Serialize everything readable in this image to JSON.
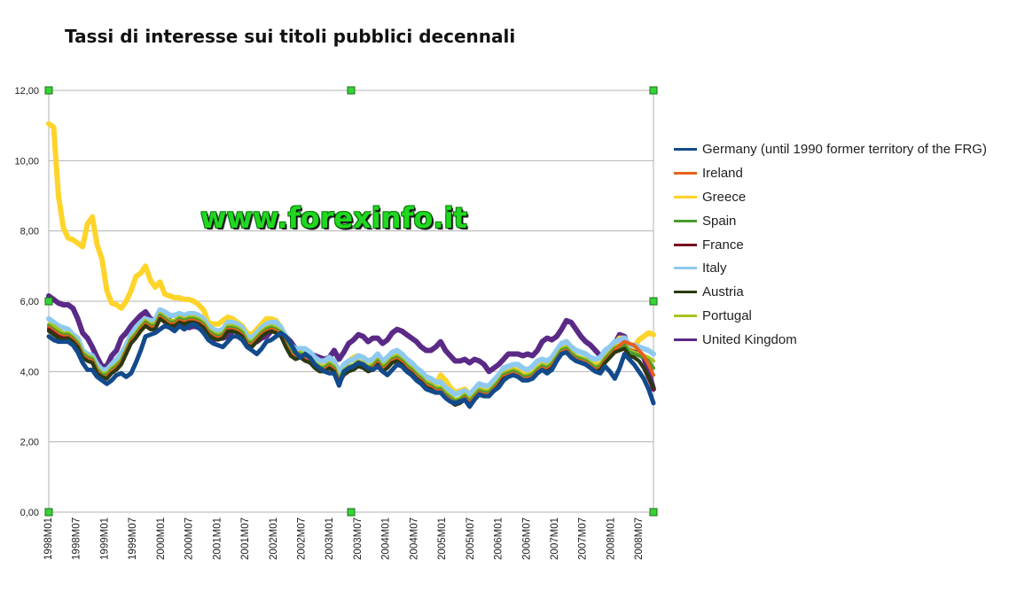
{
  "chart_data": {
    "type": "line",
    "title": "Tassi di interesse sui titoli pubblici decennali",
    "xlabel": "",
    "ylabel": "",
    "ylim": [
      0,
      12
    ],
    "y_ticks": [
      "0,00",
      "2,00",
      "4,00",
      "6,00",
      "8,00",
      "10,00",
      "12,00"
    ],
    "x_tick_labels": [
      "1998M01",
      "1998M07",
      "1999M01",
      "1999M07",
      "2000M01",
      "2000M07",
      "2001M01",
      "2001M07",
      "2002M01",
      "2002M07",
      "2003M01",
      "2003M07",
      "2004M01",
      "2004M07",
      "2005M01",
      "2005M07",
      "2006M01",
      "2006M07",
      "2007M01",
      "2007M07",
      "2008M01",
      "2008M07"
    ],
    "x_start": "1998M01",
    "x_end": "2008M12",
    "grid": "horizontal",
    "legend_position": "right",
    "annotation": "www.forexinfo.it",
    "series": [
      {
        "name": "United Kingdom",
        "color": "#5b2a86",
        "values": [
          6.15,
          6.05,
          5.95,
          5.9,
          5.9,
          5.8,
          5.5,
          5.1,
          4.95,
          4.7,
          4.4,
          4.15,
          4.15,
          4.45,
          4.6,
          4.95,
          5.1,
          5.3,
          5.45,
          5.6,
          5.7,
          5.5,
          5.45,
          5.75,
          5.6,
          5.45,
          5.3,
          5.35,
          5.3,
          5.25,
          5.3,
          5.25,
          5.2,
          5.05,
          4.9,
          4.95,
          4.95,
          5.0,
          5.15,
          5.25,
          5.2,
          5.0,
          4.9,
          4.85,
          4.95,
          5.0,
          5.15,
          5.2,
          5.15,
          5.0,
          4.85,
          4.65,
          4.6,
          4.55,
          4.5,
          4.45,
          4.4,
          4.35,
          4.4,
          4.6,
          4.35,
          4.55,
          4.8,
          4.9,
          5.05,
          5.0,
          4.85,
          4.95,
          4.95,
          4.8,
          4.9,
          5.1,
          5.2,
          5.15,
          5.05,
          4.95,
          4.85,
          4.7,
          4.6,
          4.6,
          4.7,
          4.85,
          4.6,
          4.45,
          4.3,
          4.3,
          4.35,
          4.25,
          4.35,
          4.3,
          4.2,
          4.0,
          4.1,
          4.2,
          4.35,
          4.5,
          4.5,
          4.5,
          4.45,
          4.5,
          4.45,
          4.6,
          4.85,
          4.95,
          4.9,
          5.0,
          5.2,
          5.45,
          5.4,
          5.2,
          5.0,
          4.85,
          4.75,
          4.6,
          4.45,
          4.55,
          4.5,
          4.8,
          5.05,
          5.0,
          4.6,
          4.55,
          4.5,
          4.4,
          4.0,
          3.5
        ]
      },
      {
        "name": "Greece",
        "color": "#ffd42a",
        "values": [
          11.05,
          10.95,
          9.0,
          8.1,
          7.8,
          7.75,
          7.65,
          7.55,
          8.2,
          8.4,
          7.6,
          7.2,
          6.3,
          5.95,
          5.9,
          5.8,
          6.0,
          6.3,
          6.7,
          6.8,
          7.0,
          6.6,
          6.4,
          6.55,
          6.2,
          6.15,
          6.1,
          6.1,
          6.05,
          6.05,
          6.0,
          5.9,
          5.75,
          5.4,
          5.35,
          5.35,
          5.45,
          5.55,
          5.5,
          5.4,
          5.3,
          5.1,
          5.05,
          5.2,
          5.35,
          5.5,
          5.5,
          5.45,
          5.25,
          4.95,
          4.65,
          4.55,
          4.55,
          4.45,
          4.4,
          4.3,
          4.25,
          4.3,
          4.3,
          4.3,
          4.0,
          4.15,
          4.3,
          4.4,
          4.45,
          4.4,
          4.25,
          4.3,
          4.4,
          4.25,
          4.3,
          4.45,
          4.5,
          4.4,
          4.25,
          4.1,
          3.95,
          3.85,
          3.75,
          3.65,
          3.6,
          3.9,
          3.75,
          3.55,
          3.4,
          3.45,
          3.5,
          3.35,
          3.45,
          3.6,
          3.55,
          3.55,
          3.7,
          3.85,
          4.05,
          4.1,
          4.15,
          4.1,
          4.05,
          4.0,
          4.1,
          4.25,
          4.3,
          4.25,
          4.35,
          4.55,
          4.75,
          4.85,
          4.7,
          4.6,
          4.55,
          4.5,
          4.35,
          4.25,
          4.2,
          4.4,
          4.6,
          4.8,
          4.95,
          4.95,
          4.75,
          4.7,
          4.9,
          5.0,
          5.1,
          5.05
        ]
      },
      {
        "name": "Italy",
        "color": "#8ecaf0",
        "values": [
          5.5,
          5.4,
          5.3,
          5.25,
          5.2,
          5.05,
          4.95,
          4.6,
          4.5,
          4.45,
          4.2,
          4.05,
          4.05,
          4.2,
          4.35,
          4.5,
          4.75,
          5.05,
          5.25,
          5.4,
          5.5,
          5.45,
          5.45,
          5.75,
          5.7,
          5.6,
          5.6,
          5.65,
          5.6,
          5.65,
          5.65,
          5.6,
          5.5,
          5.3,
          5.2,
          5.15,
          5.2,
          5.4,
          5.4,
          5.35,
          5.25,
          5.0,
          4.95,
          5.1,
          5.25,
          5.35,
          5.4,
          5.4,
          5.25,
          5.0,
          4.75,
          4.65,
          4.65,
          4.65,
          4.55,
          4.4,
          4.3,
          4.3,
          4.4,
          4.3,
          3.95,
          4.2,
          4.3,
          4.35,
          4.45,
          4.4,
          4.3,
          4.35,
          4.5,
          4.3,
          4.4,
          4.55,
          4.6,
          4.5,
          4.35,
          4.25,
          4.1,
          4.0,
          3.85,
          3.8,
          3.7,
          3.7,
          3.55,
          3.45,
          3.35,
          3.4,
          3.45,
          3.35,
          3.5,
          3.65,
          3.6,
          3.6,
          3.75,
          3.9,
          4.1,
          4.15,
          4.2,
          4.2,
          4.1,
          4.05,
          4.15,
          4.3,
          4.35,
          4.3,
          4.4,
          4.6,
          4.8,
          4.85,
          4.7,
          4.6,
          4.55,
          4.5,
          4.4,
          4.35,
          4.4,
          4.6,
          4.7,
          4.85,
          4.9,
          4.95,
          4.75,
          4.75,
          4.7,
          4.65,
          4.6,
          4.5
        ]
      },
      {
        "name": "Portugal",
        "color": "#a9c41e",
        "values": [
          5.35,
          5.3,
          5.2,
          5.1,
          5.1,
          5.0,
          4.85,
          4.55,
          4.45,
          4.4,
          4.1,
          3.95,
          3.95,
          4.1,
          4.2,
          4.35,
          4.65,
          4.95,
          5.1,
          5.3,
          5.45,
          5.35,
          5.35,
          5.65,
          5.55,
          5.45,
          5.45,
          5.55,
          5.5,
          5.55,
          5.55,
          5.5,
          5.4,
          5.2,
          5.1,
          5.05,
          5.1,
          5.3,
          5.3,
          5.25,
          5.15,
          4.9,
          4.85,
          5.0,
          5.15,
          5.25,
          5.3,
          5.25,
          5.15,
          4.85,
          4.6,
          4.5,
          4.55,
          4.45,
          4.4,
          4.25,
          4.15,
          4.15,
          4.25,
          4.15,
          3.8,
          4.05,
          4.15,
          4.2,
          4.3,
          4.25,
          4.15,
          4.2,
          4.35,
          4.15,
          4.25,
          4.4,
          4.45,
          4.35,
          4.2,
          4.1,
          3.95,
          3.85,
          3.7,
          3.65,
          3.55,
          3.55,
          3.4,
          3.3,
          3.2,
          3.25,
          3.35,
          3.2,
          3.35,
          3.5,
          3.45,
          3.45,
          3.6,
          3.75,
          3.95,
          4.0,
          4.05,
          4.0,
          3.9,
          3.9,
          3.95,
          4.1,
          4.2,
          4.15,
          4.25,
          4.45,
          4.65,
          4.7,
          4.55,
          4.45,
          4.4,
          4.35,
          4.25,
          4.15,
          4.2,
          4.4,
          4.55,
          4.7,
          4.75,
          4.8,
          4.6,
          4.55,
          4.5,
          4.45,
          4.4,
          4.3
        ]
      },
      {
        "name": "Spain",
        "color": "#4a9a2c",
        "values": [
          5.3,
          5.2,
          5.1,
          5.05,
          5.05,
          4.95,
          4.8,
          4.5,
          4.4,
          4.35,
          4.05,
          3.9,
          3.9,
          4.05,
          4.15,
          4.3,
          4.6,
          4.9,
          5.05,
          5.25,
          5.4,
          5.3,
          5.3,
          5.6,
          5.5,
          5.4,
          5.4,
          5.5,
          5.45,
          5.5,
          5.5,
          5.45,
          5.35,
          5.15,
          5.05,
          5.0,
          5.05,
          5.25,
          5.25,
          5.2,
          5.1,
          4.85,
          4.8,
          4.95,
          5.1,
          5.2,
          5.25,
          5.2,
          5.1,
          4.8,
          4.55,
          4.45,
          4.5,
          4.4,
          4.35,
          4.2,
          4.1,
          4.1,
          4.2,
          4.1,
          3.75,
          4.0,
          4.1,
          4.15,
          4.25,
          4.2,
          4.1,
          4.15,
          4.3,
          4.1,
          4.2,
          4.35,
          4.4,
          4.3,
          4.15,
          4.05,
          3.9,
          3.8,
          3.65,
          3.6,
          3.5,
          3.5,
          3.35,
          3.25,
          3.15,
          3.2,
          3.3,
          3.15,
          3.3,
          3.45,
          3.4,
          3.4,
          3.55,
          3.7,
          3.9,
          3.95,
          4.0,
          3.95,
          3.85,
          3.85,
          3.9,
          4.05,
          4.15,
          4.1,
          4.2,
          4.4,
          4.6,
          4.65,
          4.5,
          4.4,
          4.35,
          4.3,
          4.2,
          4.1,
          4.15,
          4.35,
          4.5,
          4.65,
          4.7,
          4.75,
          4.55,
          4.5,
          4.45,
          4.4,
          4.3,
          4.1
        ]
      },
      {
        "name": "Ireland",
        "color": "#e8601c",
        "values": [
          5.25,
          5.15,
          5.05,
          5.0,
          5.0,
          4.9,
          4.75,
          4.45,
          4.35,
          4.3,
          4.0,
          3.85,
          3.85,
          4.0,
          4.1,
          4.25,
          4.55,
          4.85,
          5.0,
          5.2,
          5.35,
          5.25,
          5.25,
          5.55,
          5.45,
          5.35,
          5.35,
          5.45,
          5.4,
          5.45,
          5.45,
          5.4,
          5.3,
          5.1,
          5.0,
          4.95,
          5.0,
          5.2,
          5.2,
          5.15,
          5.05,
          4.8,
          4.75,
          4.9,
          5.05,
          5.15,
          5.2,
          5.15,
          5.05,
          4.75,
          4.5,
          4.4,
          4.45,
          4.35,
          4.3,
          4.15,
          4.05,
          4.05,
          4.15,
          4.05,
          3.7,
          3.95,
          4.05,
          4.1,
          4.2,
          4.15,
          4.05,
          4.1,
          4.25,
          4.05,
          4.15,
          4.3,
          4.35,
          4.25,
          4.1,
          4.0,
          3.85,
          3.75,
          3.6,
          3.55,
          3.45,
          3.45,
          3.3,
          3.2,
          3.1,
          3.15,
          3.25,
          3.1,
          3.25,
          3.4,
          3.35,
          3.35,
          3.5,
          3.65,
          3.85,
          3.9,
          3.95,
          3.9,
          3.8,
          3.8,
          3.85,
          4.0,
          4.1,
          4.05,
          4.15,
          4.35,
          4.55,
          4.6,
          4.45,
          4.35,
          4.3,
          4.25,
          4.15,
          4.05,
          4.1,
          4.3,
          4.45,
          4.6,
          4.75,
          4.85,
          4.8,
          4.75,
          4.6,
          4.45,
          4.2,
          3.9
        ]
      },
      {
        "name": "France",
        "color": "#7a1020",
        "values": [
          5.2,
          5.1,
          5.0,
          4.95,
          4.95,
          4.85,
          4.7,
          4.4,
          4.3,
          4.25,
          3.95,
          3.8,
          3.8,
          3.95,
          4.05,
          4.2,
          4.5,
          4.8,
          4.95,
          5.15,
          5.3,
          5.2,
          5.2,
          5.5,
          5.4,
          5.3,
          5.3,
          5.4,
          5.35,
          5.4,
          5.4,
          5.35,
          5.25,
          5.05,
          4.95,
          4.9,
          4.95,
          5.15,
          5.15,
          5.1,
          5.0,
          4.75,
          4.7,
          4.85,
          5.0,
          5.1,
          5.15,
          5.1,
          5.0,
          4.7,
          4.45,
          4.35,
          4.4,
          4.3,
          4.25,
          4.1,
          4.0,
          4.0,
          4.1,
          4.0,
          3.65,
          3.9,
          4.0,
          4.05,
          4.15,
          4.1,
          4.0,
          4.05,
          4.2,
          4.0,
          4.1,
          4.25,
          4.3,
          4.2,
          4.05,
          3.95,
          3.8,
          3.7,
          3.55,
          3.5,
          3.4,
          3.4,
          3.25,
          3.15,
          3.05,
          3.1,
          3.2,
          3.05,
          3.2,
          3.35,
          3.3,
          3.3,
          3.45,
          3.6,
          3.8,
          3.85,
          3.9,
          3.85,
          3.75,
          3.75,
          3.8,
          3.95,
          4.05,
          4.0,
          4.1,
          4.3,
          4.5,
          4.55,
          4.4,
          4.3,
          4.25,
          4.2,
          4.1,
          4.0,
          4.05,
          4.25,
          4.4,
          4.55,
          4.6,
          4.65,
          4.45,
          4.4,
          4.3,
          4.1,
          3.8,
          3.5
        ]
      },
      {
        "name": "Austria",
        "color": "#2a3a10",
        "values": [
          5.15,
          5.05,
          4.95,
          4.9,
          4.95,
          4.85,
          4.7,
          4.4,
          4.3,
          4.25,
          3.95,
          3.85,
          3.8,
          3.95,
          4.05,
          4.2,
          4.5,
          4.8,
          4.95,
          5.15,
          5.3,
          5.2,
          5.2,
          5.5,
          5.4,
          5.3,
          5.3,
          5.4,
          5.35,
          5.4,
          5.4,
          5.35,
          5.25,
          5.05,
          4.95,
          4.9,
          4.95,
          5.15,
          5.15,
          5.1,
          5.0,
          4.75,
          4.7,
          4.85,
          5.0,
          5.1,
          5.15,
          5.1,
          5.0,
          4.7,
          4.45,
          4.35,
          4.4,
          4.3,
          4.25,
          4.1,
          4.0,
          4.0,
          4.1,
          4.0,
          3.65,
          3.9,
          4.0,
          4.05,
          4.15,
          4.1,
          4.0,
          4.05,
          4.2,
          4.0,
          4.1,
          4.25,
          4.3,
          4.2,
          4.05,
          3.95,
          3.8,
          3.7,
          3.55,
          3.5,
          3.4,
          3.4,
          3.25,
          3.15,
          3.05,
          3.1,
          3.2,
          3.05,
          3.2,
          3.35,
          3.3,
          3.3,
          3.45,
          3.6,
          3.8,
          3.85,
          3.9,
          3.85,
          3.75,
          3.75,
          3.8,
          3.95,
          4.05,
          4.0,
          4.1,
          4.3,
          4.5,
          4.55,
          4.4,
          4.3,
          4.25,
          4.2,
          4.1,
          4.0,
          4.05,
          4.25,
          4.4,
          4.55,
          4.6,
          4.65,
          4.45,
          4.4,
          4.3,
          4.1,
          3.85,
          3.55
        ]
      },
      {
        "name": "Germany (until 1990 former territory of the FRG)",
        "color": "#124a8c",
        "values": [
          5.0,
          4.9,
          4.85,
          4.85,
          4.85,
          4.75,
          4.55,
          4.25,
          4.05,
          4.05,
          3.85,
          3.75,
          3.65,
          3.75,
          3.9,
          3.95,
          3.85,
          3.95,
          4.25,
          4.6,
          5.0,
          5.05,
          5.1,
          5.2,
          5.3,
          5.25,
          5.15,
          5.3,
          5.2,
          5.3,
          5.35,
          5.25,
          5.1,
          4.9,
          4.8,
          4.75,
          4.7,
          4.85,
          5.0,
          5.0,
          4.9,
          4.7,
          4.6,
          4.5,
          4.65,
          4.85,
          4.9,
          5.0,
          5.1,
          5.0,
          4.8,
          4.55,
          4.4,
          4.5,
          4.4,
          4.2,
          4.1,
          4.0,
          3.95,
          3.95,
          3.6,
          4.0,
          4.1,
          4.15,
          4.25,
          4.2,
          4.1,
          4.05,
          4.15,
          4.0,
          3.9,
          4.05,
          4.2,
          4.15,
          4.0,
          3.9,
          3.75,
          3.65,
          3.5,
          3.45,
          3.4,
          3.4,
          3.25,
          3.15,
          3.1,
          3.15,
          3.2,
          3.0,
          3.2,
          3.35,
          3.3,
          3.3,
          3.45,
          3.55,
          3.75,
          3.85,
          3.9,
          3.85,
          3.75,
          3.75,
          3.8,
          3.95,
          4.05,
          3.95,
          4.05,
          4.3,
          4.5,
          4.55,
          4.4,
          4.3,
          4.25,
          4.2,
          4.1,
          4.0,
          3.95,
          4.15,
          4.0,
          3.8,
          4.1,
          4.5,
          4.35,
          4.2,
          4.0,
          3.8,
          3.5,
          3.1
        ]
      }
    ]
  }
}
